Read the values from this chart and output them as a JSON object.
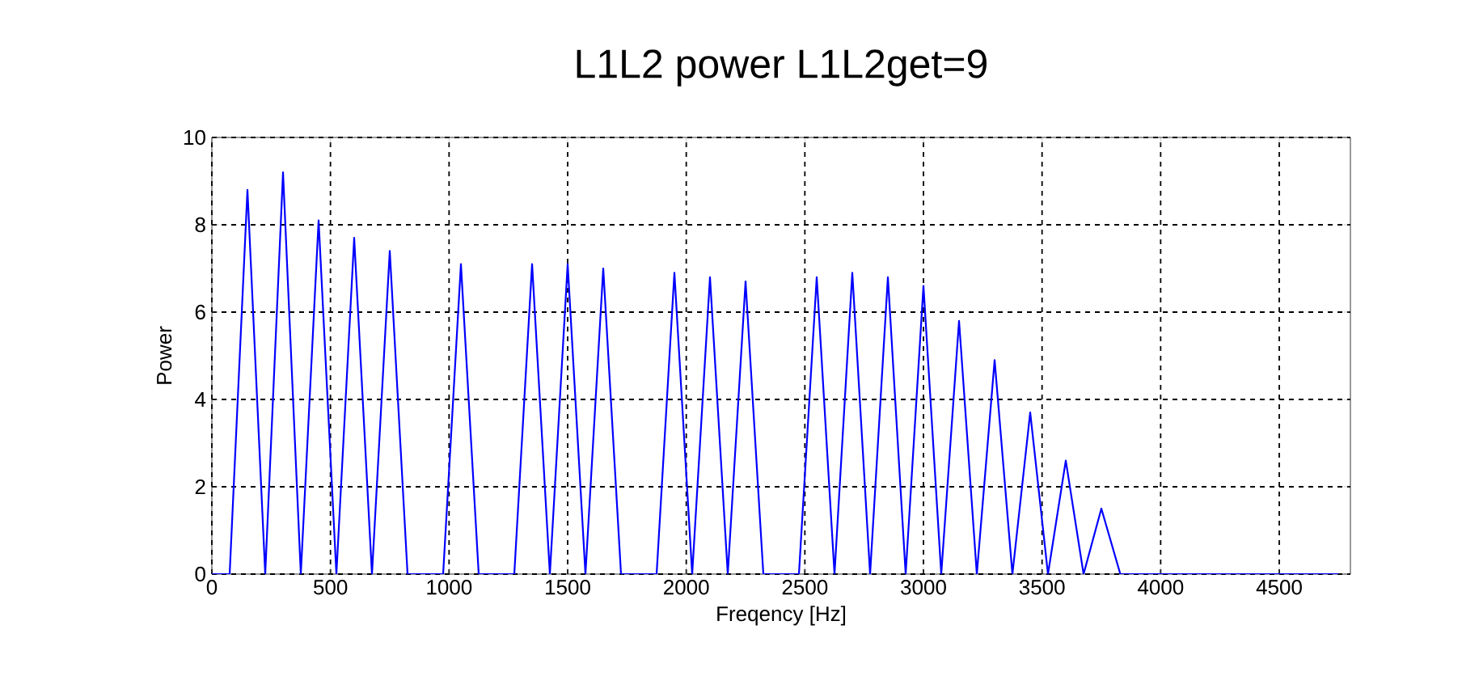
{
  "chart_data": {
    "type": "line",
    "title": "L1L2 power  L1L2get=9",
    "xlabel": "Freqency [Hz]",
    "ylabel": "Power",
    "xlim": [
      0,
      4800
    ],
    "ylim": [
      0,
      10
    ],
    "xticks": [
      0,
      500,
      1000,
      1500,
      2000,
      2500,
      3000,
      3500,
      4000,
      4500
    ],
    "yticks": [
      0,
      2,
      4,
      6,
      8,
      10
    ],
    "grid": true,
    "marker": "none",
    "line_style": "solid",
    "series": [
      {
        "color": "#0000ff",
        "x": [
          0,
          75,
          150,
          225,
          300,
          375,
          450,
          525,
          600,
          675,
          750,
          825,
          975,
          1050,
          1125,
          1275,
          1350,
          1425,
          1500,
          1575,
          1650,
          1725,
          1875,
          1950,
          2025,
          2100,
          2175,
          2250,
          2325,
          2475,
          2550,
          2625,
          2700,
          2775,
          2850,
          2925,
          3000,
          3075,
          3150,
          3225,
          3300,
          3375,
          3450,
          3525,
          3600,
          3675,
          3750,
          3830,
          4750
        ],
        "values": [
          0,
          0,
          8.8,
          0,
          9.2,
          0,
          8.1,
          0,
          7.7,
          0,
          7.4,
          0,
          0,
          7.1,
          0,
          0,
          7.1,
          0,
          7.1,
          0,
          7.0,
          0,
          0,
          6.9,
          0,
          6.8,
          0,
          6.7,
          0,
          0,
          6.8,
          0,
          6.9,
          0,
          6.8,
          0,
          6.6,
          0,
          5.8,
          0,
          4.9,
          0,
          3.7,
          0,
          2.6,
          0,
          1.5,
          0,
          0
        ]
      }
    ]
  }
}
